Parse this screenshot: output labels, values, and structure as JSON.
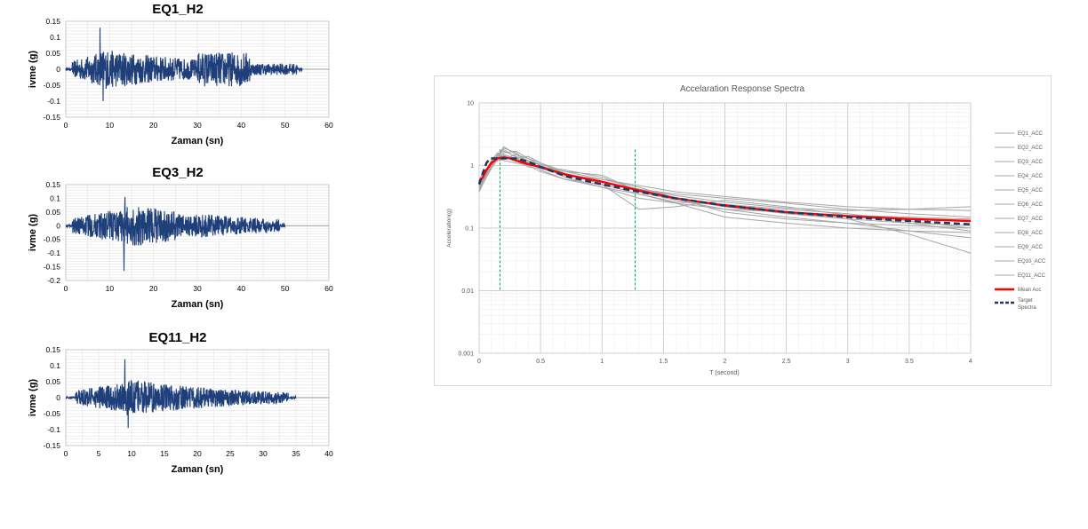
{
  "time_histories": [
    {
      "title": "EQ1_H2",
      "xlabel": "Zaman (sn)",
      "ylabel": "ivme (g)",
      "xticks": [
        0,
        10,
        20,
        30,
        40,
        50,
        60
      ],
      "yticks": [
        "0.15",
        "0.1",
        "0.05",
        "0",
        "-0.05",
        "-0.1",
        "-0.15"
      ],
      "xlim": [
        0,
        60
      ],
      "ylim": [
        -0.15,
        0.15
      ],
      "duration": 54,
      "peak_positive": {
        "t": 7.8,
        "a": 0.13
      },
      "peak_negative": {
        "t": 8.5,
        "a": -0.1
      },
      "line_color": "#1f3f7a"
    },
    {
      "title": "EQ3_H2",
      "xlabel": "Zaman (sn)",
      "ylabel": "ivme (g)",
      "xticks": [
        0,
        10,
        20,
        30,
        40,
        50,
        60
      ],
      "yticks": [
        "0.15",
        "0.1",
        "0.05",
        "0",
        "-0.05",
        "-0.1",
        "-0.15",
        "-0.2"
      ],
      "xlim": [
        0,
        60
      ],
      "ylim": [
        -0.2,
        0.15
      ],
      "duration": 50,
      "peak_positive": {
        "t": 13.5,
        "a": 0.105
      },
      "peak_negative": {
        "t": 13.3,
        "a": -0.165
      },
      "line_color": "#1f3f7a"
    },
    {
      "title": "EQ11_H2",
      "xlabel": "Zaman (sn)",
      "ylabel": "ivme (g)",
      "xticks": [
        0,
        5,
        10,
        15,
        20,
        25,
        30,
        35,
        40
      ],
      "yticks": [
        "0.15",
        "0.1",
        "0.05",
        "0",
        "-0.05",
        "-0.1",
        "-0.15"
      ],
      "xlim": [
        0,
        40
      ],
      "ylim": [
        -0.15,
        0.15
      ],
      "duration": 35,
      "peak_positive": {
        "t": 9,
        "a": 0.12
      },
      "peak_negative": {
        "t": 9.5,
        "a": -0.095
      },
      "line_color": "#1f3f7a"
    }
  ],
  "chart_data": {
    "type": "line",
    "title": "Accelaration Response Spectra",
    "xlabel": "T (second)",
    "ylabel": "Acceleration(g)",
    "xlim": [
      0,
      4
    ],
    "ylim": [
      0.001,
      10
    ],
    "yscale": "log",
    "xticks": [
      "0",
      "0.5",
      "1",
      "1.5",
      "2",
      "2.5",
      "3",
      "3.5",
      "4"
    ],
    "yticks": [
      "10",
      "1",
      "0.1",
      "0.01",
      "0.001"
    ],
    "grid": true,
    "legend_position": "right",
    "vertical_markers": [
      0.17,
      1.27
    ],
    "marker_color": "#00b050",
    "individual_color": "#a6a6a6",
    "mean_color": "#ff0000",
    "target_color": "#1f3864",
    "series": [
      {
        "name": "EQ1_ACC",
        "x": [
          0,
          0.05,
          0.1,
          0.15,
          0.2,
          0.3,
          0.4,
          0.5,
          0.7,
          1.0,
          1.3,
          1.6,
          2.0,
          2.5,
          3.0,
          3.5,
          4.0
        ],
        "y": [
          0.45,
          0.7,
          1.1,
          1.5,
          1.7,
          1.4,
          1.2,
          1.0,
          0.75,
          0.55,
          0.42,
          0.33,
          0.26,
          0.21,
          0.19,
          0.2,
          0.22
        ]
      },
      {
        "name": "EQ2_ACC",
        "x": [
          0,
          0.05,
          0.1,
          0.15,
          0.2,
          0.3,
          0.4,
          0.5,
          0.7,
          1.0,
          1.3,
          1.6,
          2.0,
          2.5,
          3.0,
          3.5,
          4.0
        ],
        "y": [
          0.4,
          0.6,
          0.95,
          1.3,
          1.9,
          1.6,
          1.1,
          0.9,
          0.7,
          0.6,
          0.45,
          0.3,
          0.22,
          0.17,
          0.14,
          0.12,
          0.11
        ]
      },
      {
        "name": "EQ3_ACC",
        "x": [
          0,
          0.05,
          0.1,
          0.15,
          0.2,
          0.3,
          0.4,
          0.5,
          0.7,
          1.0,
          1.3,
          1.6,
          2.0,
          2.5,
          3.0,
          3.5,
          4.0
        ],
        "y": [
          0.5,
          0.8,
          1.2,
          1.6,
          1.5,
          1.3,
          1.4,
          1.1,
          0.8,
          0.7,
          0.38,
          0.28,
          0.2,
          0.15,
          0.12,
          0.09,
          0.07
        ]
      },
      {
        "name": "EQ4_ACC",
        "x": [
          0,
          0.05,
          0.1,
          0.15,
          0.2,
          0.3,
          0.4,
          0.5,
          0.7,
          1.0,
          1.3,
          1.6,
          2.0,
          2.5,
          3.0,
          3.5,
          4.0
        ],
        "y": [
          0.55,
          0.75,
          1.0,
          1.2,
          1.3,
          1.5,
          1.3,
          1.0,
          0.65,
          0.45,
          0.3,
          0.25,
          0.2,
          0.18,
          0.16,
          0.15,
          0.14
        ]
      },
      {
        "name": "EQ5_ACC",
        "x": [
          0,
          0.05,
          0.1,
          0.15,
          0.2,
          0.3,
          0.4,
          0.5,
          0.7,
          1.0,
          1.3,
          1.6,
          2.0,
          2.5,
          3.0,
          3.5,
          4.0
        ],
        "y": [
          0.42,
          0.65,
          1.0,
          1.4,
          2.0,
          1.5,
          1.2,
          0.85,
          0.6,
          0.5,
          0.35,
          0.26,
          0.24,
          0.2,
          0.17,
          0.13,
          0.1
        ]
      },
      {
        "name": "EQ6_ACC",
        "x": [
          0,
          0.05,
          0.1,
          0.15,
          0.2,
          0.3,
          0.4,
          0.5,
          0.7,
          1.0,
          1.3,
          1.6,
          2.0,
          2.5,
          3.0,
          3.5,
          4.0
        ],
        "y": [
          0.6,
          0.85,
          1.1,
          1.3,
          1.2,
          1.1,
          1.0,
          0.95,
          0.85,
          0.65,
          0.4,
          0.3,
          0.18,
          0.14,
          0.12,
          0.11,
          0.1
        ]
      },
      {
        "name": "EQ7_ACC",
        "x": [
          0,
          0.05,
          0.1,
          0.15,
          0.2,
          0.3,
          0.4,
          0.5,
          0.7,
          1.0,
          1.3,
          1.6,
          2.0,
          2.5,
          3.0,
          3.5,
          4.0
        ],
        "y": [
          0.38,
          0.6,
          0.9,
          1.25,
          1.6,
          1.7,
          1.3,
          1.1,
          0.75,
          0.5,
          0.2,
          0.22,
          0.28,
          0.22,
          0.16,
          0.12,
          0.09
        ]
      },
      {
        "name": "EQ8_ACC",
        "x": [
          0,
          0.05,
          0.1,
          0.15,
          0.2,
          0.3,
          0.4,
          0.5,
          0.7,
          1.0,
          1.3,
          1.6,
          2.0,
          2.5,
          3.0,
          3.5,
          4.0
        ],
        "y": [
          0.5,
          0.7,
          1.05,
          1.35,
          1.45,
          1.2,
          0.95,
          0.9,
          0.7,
          0.55,
          0.42,
          0.35,
          0.3,
          0.25,
          0.2,
          0.17,
          0.15
        ]
      },
      {
        "name": "EQ9_ACC",
        "x": [
          0,
          0.05,
          0.1,
          0.15,
          0.2,
          0.3,
          0.4,
          0.5,
          0.7,
          1.0,
          1.3,
          1.6,
          2.0,
          2.5,
          3.0,
          3.5,
          4.0
        ],
        "y": [
          0.45,
          0.68,
          1.0,
          1.5,
          1.8,
          1.35,
          1.0,
          0.8,
          0.6,
          0.45,
          0.35,
          0.25,
          0.15,
          0.12,
          0.1,
          0.09,
          0.085
        ]
      },
      {
        "name": "EQ10_ACC",
        "x": [
          0,
          0.05,
          0.1,
          0.15,
          0.2,
          0.3,
          0.4,
          0.5,
          0.7,
          1.0,
          1.3,
          1.6,
          2.0,
          2.5,
          3.0,
          3.5,
          4.0
        ],
        "y": [
          0.52,
          0.78,
          1.15,
          1.45,
          1.35,
          1.25,
          1.15,
          1.05,
          0.8,
          0.6,
          0.48,
          0.38,
          0.32,
          0.26,
          0.22,
          0.2,
          0.19
        ]
      },
      {
        "name": "EQ11_ACC",
        "x": [
          0,
          0.05,
          0.1,
          0.15,
          0.2,
          0.3,
          0.4,
          0.5,
          0.7,
          1.0,
          1.3,
          1.6,
          2.0,
          2.5,
          3.0,
          3.5,
          4.0
        ],
        "y": [
          0.48,
          0.72,
          1.05,
          1.3,
          1.4,
          1.3,
          1.1,
          0.95,
          0.72,
          0.55,
          0.4,
          0.3,
          0.22,
          0.18,
          0.14,
          0.08,
          0.04
        ]
      },
      {
        "name": "Mean Acc",
        "x": [
          0,
          0.03,
          0.06,
          0.1,
          0.15,
          0.2,
          0.25,
          0.3,
          0.4,
          0.5,
          0.7,
          1.0,
          1.3,
          1.6,
          2.0,
          2.5,
          3.0,
          3.5,
          4.0
        ],
        "y": [
          0.55,
          0.65,
          0.85,
          1.1,
          1.3,
          1.35,
          1.3,
          1.2,
          1.05,
          0.95,
          0.72,
          0.55,
          0.4,
          0.3,
          0.23,
          0.18,
          0.155,
          0.14,
          0.13
        ]
      },
      {
        "name": "Target Spectra",
        "x": [
          0,
          0.03,
          0.06,
          0.09,
          0.12,
          0.2,
          0.3,
          0.4,
          0.5,
          0.7,
          1.0,
          1.3,
          1.6,
          2.0,
          2.5,
          3.0,
          3.5,
          4.0
        ],
        "y": [
          0.5,
          0.75,
          1.1,
          1.3,
          1.3,
          1.3,
          1.3,
          1.15,
          0.95,
          0.68,
          0.5,
          0.38,
          0.3,
          0.23,
          0.18,
          0.15,
          0.13,
          0.115
        ]
      }
    ]
  }
}
